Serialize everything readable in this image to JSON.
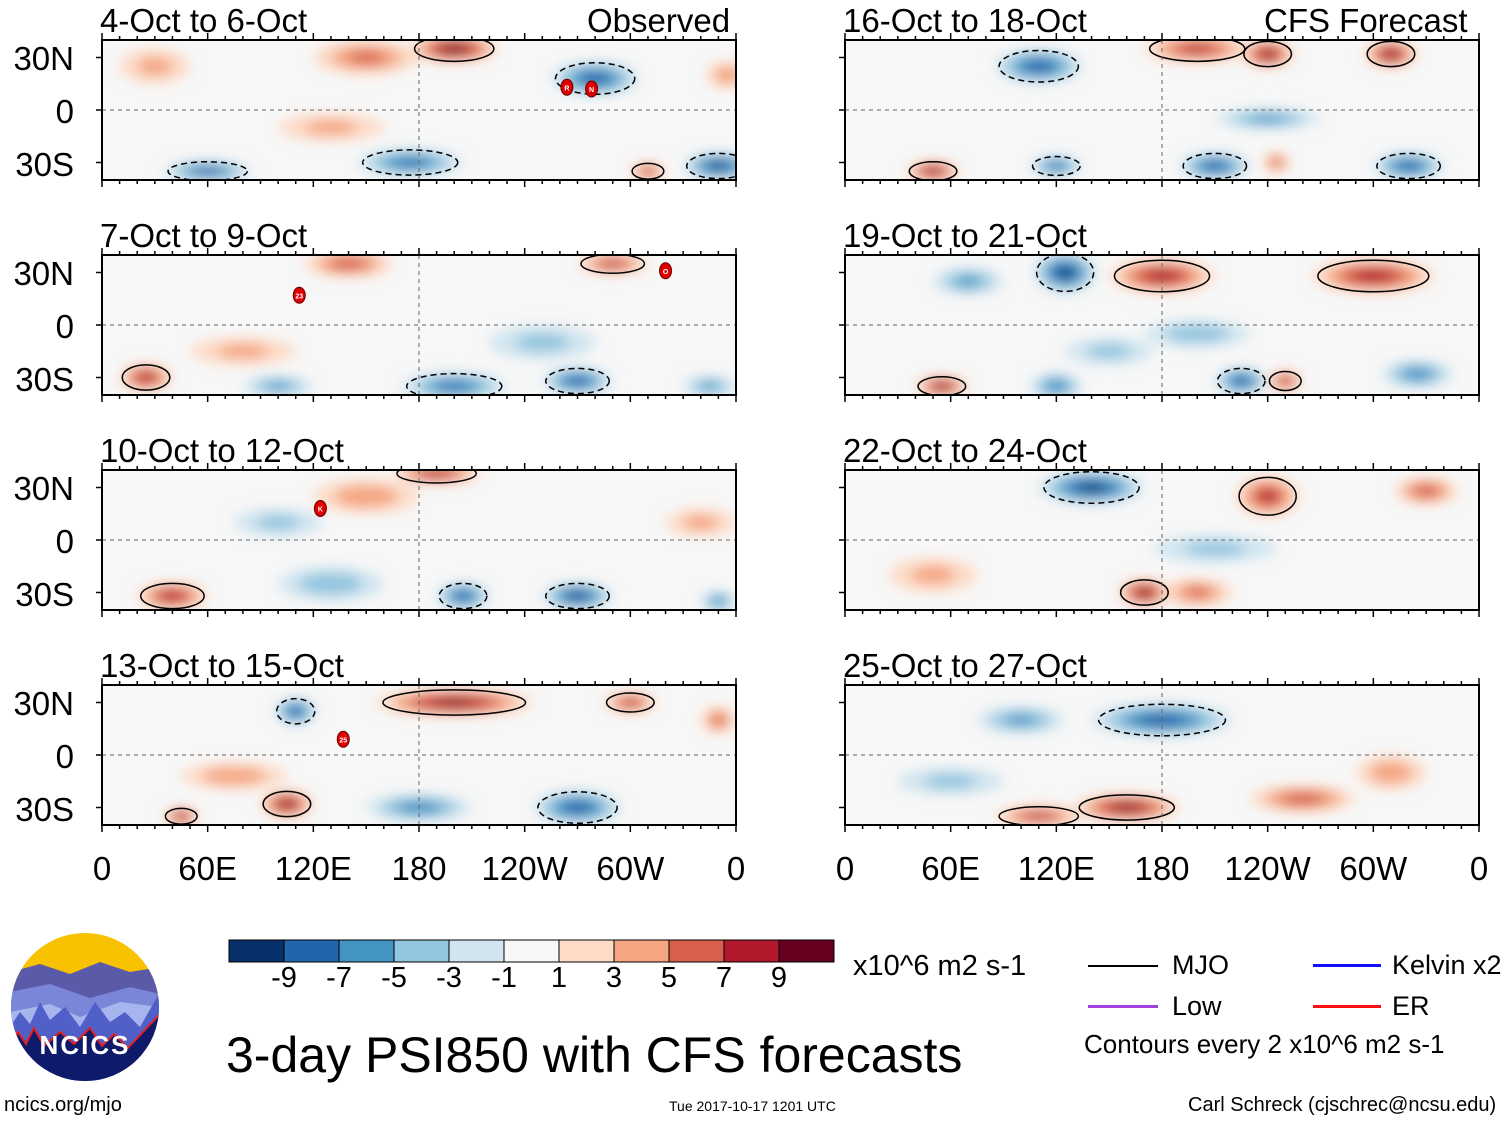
{
  "header": {
    "left_label": "Observed",
    "right_label": "CFS Forecast"
  },
  "lat_labels": [
    "30N",
    "0",
    "30S"
  ],
  "lon_labels": [
    "0",
    "60E",
    "120E",
    "180",
    "120W",
    "60W",
    "0"
  ],
  "panels": [
    {
      "title": "4-Oct to 6-Oct",
      "col": 0,
      "row": 0,
      "blobs": [
        [
          200,
          35,
          10,
          25,
          8
        ],
        [
          150,
          30,
          5,
          30,
          10
        ],
        [
          280,
          18,
          -8,
          25,
          10
        ],
        [
          60,
          -35,
          -8,
          25,
          6
        ],
        [
          175,
          -30,
          -7,
          30,
          8
        ],
        [
          350,
          -32,
          -9,
          20,
          8
        ],
        [
          130,
          -10,
          3,
          30,
          8
        ],
        [
          310,
          -35,
          7,
          10,
          5
        ],
        [
          30,
          25,
          3,
          20,
          10
        ],
        [
          355,
          20,
          4,
          12,
          8
        ]
      ],
      "cyclones": [
        {
          "label": "R",
          "lon": 264,
          "lat": 13
        },
        {
          "label": "N",
          "lon": 278,
          "lat": 12
        }
      ]
    },
    {
      "title": "7-Oct to 9-Oct",
      "col": 0,
      "row": 1,
      "blobs": [
        [
          140,
          35,
          6,
          25,
          8
        ],
        [
          290,
          35,
          7,
          20,
          6
        ],
        [
          25,
          -30,
          8,
          15,
          8
        ],
        [
          100,
          -35,
          -5,
          20,
          6
        ],
        [
          200,
          -35,
          -7,
          30,
          8
        ],
        [
          270,
          -32,
          -8,
          20,
          8
        ],
        [
          345,
          -35,
          -5,
          15,
          6
        ],
        [
          80,
          -15,
          3,
          30,
          8
        ],
        [
          250,
          -10,
          -3,
          30,
          10
        ]
      ],
      "cyclones": [
        {
          "label": "23",
          "lon": 112,
          "lat": 17
        },
        {
          "label": "O",
          "lon": 320,
          "lat": 31
        }
      ]
    },
    {
      "title": "10-Oct to 12-Oct",
      "col": 0,
      "row": 2,
      "blobs": [
        [
          190,
          38,
          8,
          25,
          6
        ],
        [
          150,
          25,
          4,
          30,
          10
        ],
        [
          40,
          -32,
          8,
          20,
          8
        ],
        [
          130,
          -25,
          -4,
          30,
          10
        ],
        [
          205,
          -32,
          -8,
          15,
          8
        ],
        [
          270,
          -32,
          -9,
          20,
          8
        ],
        [
          350,
          -35,
          -6,
          10,
          6
        ],
        [
          100,
          10,
          -3,
          25,
          8
        ],
        [
          340,
          10,
          3,
          20,
          8
        ]
      ],
      "cyclones": [
        {
          "label": "K",
          "lon": 124,
          "lat": 18
        }
      ]
    },
    {
      "title": "13-Oct to 15-Oct",
      "col": 0,
      "row": 3,
      "blobs": [
        [
          200,
          30,
          9,
          45,
          8
        ],
        [
          300,
          30,
          7,
          15,
          6
        ],
        [
          110,
          25,
          -8,
          12,
          8
        ],
        [
          45,
          -35,
          9,
          10,
          5
        ],
        [
          105,
          -28,
          9,
          15,
          8
        ],
        [
          180,
          -30,
          -6,
          30,
          8
        ],
        [
          270,
          -30,
          -8,
          25,
          10
        ],
        [
          75,
          -12,
          4,
          30,
          8
        ],
        [
          350,
          20,
          5,
          10,
          8
        ]
      ],
      "cyclones": [
        {
          "label": "25",
          "lon": 137,
          "lat": 9
        }
      ]
    },
    {
      "title": "16-Oct to 18-Oct",
      "col": 1,
      "row": 0,
      "blobs": [
        [
          200,
          35,
          7,
          30,
          8
        ],
        [
          240,
          32,
          9,
          15,
          8
        ],
        [
          310,
          32,
          9,
          15,
          8
        ],
        [
          110,
          25,
          -8,
          25,
          10
        ],
        [
          50,
          -35,
          9,
          15,
          6
        ],
        [
          120,
          -32,
          -7,
          15,
          6
        ],
        [
          210,
          -32,
          -8,
          20,
          8
        ],
        [
          320,
          -32,
          -8,
          20,
          8
        ],
        [
          245,
          -30,
          5,
          8,
          6
        ],
        [
          240,
          -5,
          -5,
          30,
          6
        ]
      ],
      "cyclones": []
    },
    {
      "title": "19-Oct to 21-Oct",
      "col": 1,
      "row": 1,
      "blobs": [
        [
          180,
          28,
          8,
          30,
          10
        ],
        [
          300,
          28,
          8,
          35,
          10
        ],
        [
          125,
          30,
          -9,
          18,
          12
        ],
        [
          70,
          25,
          -5,
          20,
          8
        ],
        [
          55,
          -35,
          9,
          15,
          6
        ],
        [
          120,
          -35,
          -6,
          15,
          8
        ],
        [
          225,
          -32,
          -8,
          15,
          8
        ],
        [
          250,
          -32,
          7,
          10,
          6
        ],
        [
          325,
          -28,
          -6,
          20,
          8
        ],
        [
          200,
          -5,
          -4,
          30,
          8
        ],
        [
          150,
          -15,
          -3,
          25,
          8
        ]
      ],
      "cyclones": []
    },
    {
      "title": "22-Oct to 24-Oct",
      "col": 1,
      "row": 2,
      "blobs": [
        [
          140,
          30,
          -9,
          30,
          10
        ],
        [
          240,
          25,
          7,
          18,
          12
        ],
        [
          330,
          28,
          6,
          18,
          8
        ],
        [
          170,
          -30,
          9,
          15,
          8
        ],
        [
          200,
          -30,
          5,
          20,
          8
        ],
        [
          210,
          -5,
          -3,
          35,
          8
        ],
        [
          50,
          -20,
          3,
          25,
          10
        ]
      ],
      "cyclones": []
    },
    {
      "title": "25-Oct to 27-Oct",
      "col": 1,
      "row": 3,
      "blobs": [
        [
          180,
          20,
          -8,
          40,
          10
        ],
        [
          100,
          20,
          -5,
          25,
          8
        ],
        [
          160,
          -30,
          9,
          30,
          8
        ],
        [
          110,
          -35,
          7,
          25,
          6
        ],
        [
          260,
          -25,
          6,
          30,
          8
        ],
        [
          60,
          -15,
          -3,
          30,
          8
        ],
        [
          310,
          -10,
          4,
          20,
          10
        ]
      ],
      "cyclones": []
    }
  ],
  "colorbar": {
    "levels": [
      "-9",
      "-7",
      "-5",
      "-3",
      "-1",
      "1",
      "3",
      "5",
      "7",
      "9"
    ],
    "colors": [
      "#08306b",
      "#2166ac",
      "#4393c3",
      "#92c5de",
      "#d1e5f0",
      "#f7f7f7",
      "#fddbc7",
      "#f4a582",
      "#d6604d",
      "#b2182b",
      "#67001f"
    ],
    "units": "x10^6 m2 s-1"
  },
  "legend": {
    "items": [
      {
        "label": "MJO",
        "color": "#000000"
      },
      {
        "label": "Kelvin x2",
        "color": "#1010ff"
      },
      {
        "label": "Low",
        "color": "#a040e0"
      },
      {
        "label": "ER",
        "color": "#ff1010"
      }
    ],
    "contour_note": "Contours every 2 x10^6 m2 s-1"
  },
  "logo": {
    "text": "NCICS"
  },
  "title": "3-day PSI850 with CFS forecasts",
  "footer": {
    "url": "ncics.org/mjo",
    "timestamp": "Tue 2017-10-17 1201 UTC",
    "author": "Carl Schreck (cjschrec@ncsu.edu)"
  }
}
